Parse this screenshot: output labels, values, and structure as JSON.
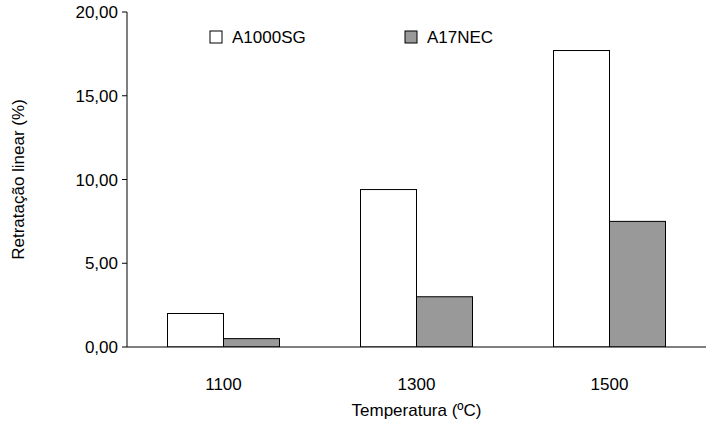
{
  "chart_data": {
    "type": "bar",
    "x_label": "Temperatura (ºC)",
    "y_label": "Retratação linear (%)",
    "categories": [
      "1100",
      "1300",
      "1500"
    ],
    "series": [
      {
        "name": "A1000SG",
        "color": "#ffffff",
        "values": [
          2.0,
          9.4,
          17.7
        ]
      },
      {
        "name": "A17NEC",
        "color": "#999999",
        "values": [
          0.5,
          3.0,
          7.5
        ]
      }
    ],
    "ylim": [
      0,
      20
    ],
    "yticks": [
      {
        "value": 0,
        "label": "0,00"
      },
      {
        "value": 5,
        "label": "5,00"
      },
      {
        "value": 10,
        "label": "10,00"
      },
      {
        "value": 15,
        "label": "15,00"
      },
      {
        "value": 20,
        "label": "20,00"
      }
    ],
    "grid": false,
    "legend": "top"
  }
}
